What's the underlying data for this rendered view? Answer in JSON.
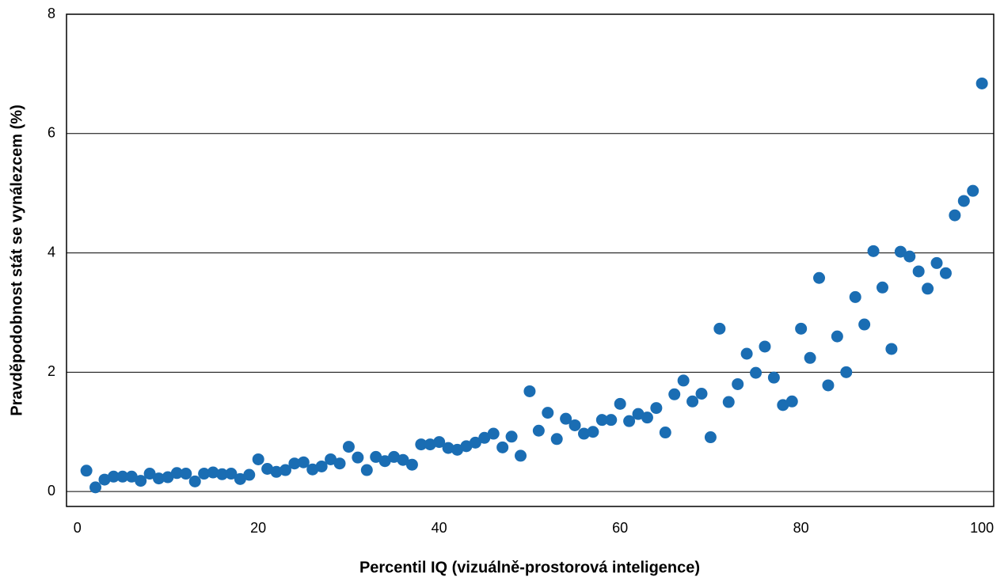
{
  "chart_data": {
    "type": "scatter",
    "x_label": "Percentil IQ (vizuálně-prostorová inteligence)",
    "y_label": "Pravděpodobnost stát se vynálezcem (%)",
    "x": [
      1,
      2,
      3,
      4,
      5,
      6,
      7,
      8,
      9,
      10,
      11,
      12,
      13,
      14,
      15,
      16,
      17,
      18,
      19,
      20,
      21,
      22,
      23,
      24,
      25,
      26,
      27,
      28,
      29,
      30,
      31,
      32,
      33,
      34,
      35,
      36,
      37,
      38,
      39,
      40,
      41,
      42,
      43,
      44,
      45,
      46,
      47,
      48,
      49,
      50,
      51,
      52,
      53,
      54,
      55,
      56,
      57,
      58,
      59,
      60,
      61,
      62,
      63,
      64,
      65,
      66,
      67,
      68,
      69,
      70,
      71,
      72,
      73,
      74,
      75,
      76,
      77,
      78,
      79,
      80,
      81,
      82,
      83,
      84,
      85,
      86,
      87,
      88,
      89,
      90,
      91,
      92,
      93,
      94,
      95,
      96,
      97,
      98,
      99,
      100
    ],
    "values": [
      0.35,
      0.07,
      0.2,
      0.25,
      0.25,
      0.25,
      0.18,
      0.3,
      0.22,
      0.24,
      0.31,
      0.3,
      0.17,
      0.3,
      0.32,
      0.29,
      0.3,
      0.21,
      0.28,
      0.54,
      0.38,
      0.33,
      0.36,
      0.47,
      0.49,
      0.37,
      0.42,
      0.54,
      0.47,
      0.75,
      0.57,
      0.36,
      0.58,
      0.51,
      0.58,
      0.53,
      0.45,
      0.79,
      0.79,
      0.83,
      0.73,
      0.7,
      0.76,
      0.82,
      0.9,
      0.97,
      0.74,
      0.92,
      0.6,
      1.68,
      1.02,
      1.32,
      0.88,
      1.22,
      1.11,
      0.97,
      1.0,
      1.2,
      1.2,
      1.47,
      1.18,
      1.3,
      1.24,
      1.4,
      0.99,
      1.63,
      1.86,
      1.51,
      1.64,
      0.91,
      2.73,
      1.5,
      1.8,
      2.31,
      1.99,
      2.43,
      1.91,
      1.45,
      1.51,
      2.73,
      2.24,
      3.58,
      1.78,
      2.6,
      2.0,
      3.26,
      2.8,
      4.03,
      3.42,
      2.39,
      4.02,
      3.94,
      3.69,
      3.4,
      3.83,
      3.66,
      4.63,
      4.87,
      5.04,
      6.84
    ],
    "color": "#1a6db3",
    "xlim": [
      -1.2,
      101.3
    ],
    "ylim": [
      -0.25,
      8
    ],
    "xticks": [
      0,
      20,
      40,
      60,
      80,
      100
    ],
    "yticks": [
      0,
      2,
      4,
      6,
      8
    ],
    "grid": true
  }
}
